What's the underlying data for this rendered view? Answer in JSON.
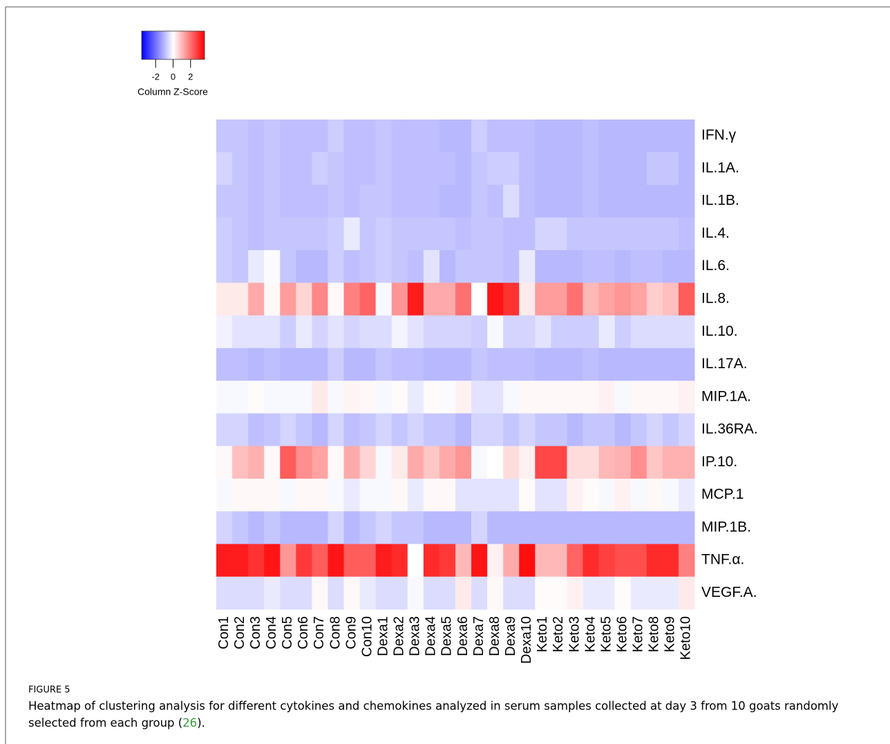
{
  "chart_data": {
    "type": "heatmap",
    "x": [
      "Con1",
      "Con2",
      "Con3",
      "Con4",
      "Con5",
      "Con6",
      "Con7",
      "Con8",
      "Con9",
      "Con10",
      "Dexa1",
      "Dexa2",
      "Dexa3",
      "Dexa4",
      "Dexa5",
      "Dexa6",
      "Dexa7",
      "Dexa8",
      "Dexa9",
      "Dexa10",
      "Keto1",
      "Keto2",
      "Keto3",
      "Keto4",
      "Keto5",
      "Keto6",
      "Keto7",
      "Keto8",
      "Keto9",
      "Keto10"
    ],
    "y": [
      "IFN.γ",
      "IL.1A.",
      "IL.1B.",
      "IL.4.",
      "IL.6.",
      "IL.8.",
      "IL.10.",
      "IL.17A.",
      "MIP.1A.",
      "IL.36RA.",
      "IP.10.",
      "MCP.1",
      "MIP.1B.",
      "TNF.α.",
      "VEGF.A."
    ],
    "values": [
      [
        -0.8,
        -0.8,
        -0.9,
        -0.8,
        -0.9,
        -0.9,
        -0.9,
        -0.7,
        -0.9,
        -0.9,
        -0.8,
        -0.9,
        -0.9,
        -0.9,
        -1,
        -1,
        -0.7,
        -0.9,
        -0.9,
        -0.9,
        -1,
        -1,
        -1,
        -0.9,
        -1,
        -1,
        -1,
        -1,
        -1,
        -1
      ],
      [
        -0.6,
        -0.8,
        -0.9,
        -0.8,
        -0.9,
        -0.9,
        -0.7,
        -0.8,
        -0.9,
        -0.9,
        -0.8,
        -0.9,
        -0.9,
        -0.9,
        -0.9,
        -1,
        -0.8,
        -0.7,
        -0.7,
        -0.9,
        -1,
        -1,
        -1,
        -0.9,
        -1,
        -1,
        -1,
        -0.8,
        -0.8,
        -1
      ],
      [
        -0.8,
        -0.8,
        -0.9,
        -0.8,
        -0.9,
        -0.9,
        -0.9,
        -0.8,
        -0.9,
        -0.8,
        -0.8,
        -0.9,
        -0.9,
        -0.9,
        -1,
        -1,
        -0.8,
        -0.9,
        -0.5,
        -0.9,
        -1,
        -1,
        -1,
        -0.9,
        -1,
        -1,
        -1,
        -1,
        -1,
        -1
      ],
      [
        -0.7,
        -0.8,
        -0.9,
        -0.8,
        -0.8,
        -0.8,
        -0.8,
        -0.7,
        -0.3,
        -0.8,
        -0.7,
        -0.8,
        -0.8,
        -0.8,
        -0.8,
        -0.9,
        -0.8,
        -0.8,
        -0.9,
        -0.9,
        -0.6,
        -0.6,
        -0.8,
        -0.8,
        -0.8,
        -0.8,
        -0.8,
        -0.8,
        -0.8,
        -0.9
      ],
      [
        -0.7,
        -0.8,
        -0.3,
        -0.05,
        -0.8,
        -1,
        -1,
        -0.7,
        -0.9,
        -0.8,
        -0.7,
        -0.8,
        -0.9,
        -0.4,
        -1,
        -0.8,
        -0.8,
        -0.8,
        -0.9,
        -0.3,
        -1,
        -1,
        -1,
        -0.9,
        -0.9,
        -1,
        -0.9,
        -0.9,
        -1,
        -1
      ],
      [
        0.3,
        0.3,
        1.2,
        0.1,
        1.4,
        0.6,
        1.7,
        0.1,
        1.8,
        2.2,
        -0.1,
        1.5,
        3.2,
        1.2,
        1.2,
        2,
        0,
        3.3,
        2.9,
        0.3,
        1.4,
        1.4,
        2,
        1,
        1.3,
        1.5,
        1.3,
        0.7,
        0.9,
        2.3
      ],
      [
        -0.2,
        -0.4,
        -0.4,
        -0.4,
        -0.7,
        -0.3,
        -0.6,
        -0.4,
        -0.6,
        -0.5,
        -0.5,
        -0.15,
        -0.4,
        -0.6,
        -0.6,
        -0.6,
        -0.7,
        -0.1,
        -0.6,
        -0.6,
        -0.4,
        -0.7,
        -0.7,
        -0.7,
        -0.3,
        -0.7,
        -0.5,
        -0.5,
        -0.5,
        -0.5
      ],
      [
        -0.9,
        -0.9,
        -1,
        -0.9,
        -1,
        -1,
        -1,
        -0.7,
        -1,
        -1,
        -0.8,
        -0.9,
        -0.9,
        -1,
        -1,
        -1,
        -0.8,
        -0.9,
        -0.9,
        -0.9,
        -1,
        -1,
        -1,
        -0.9,
        -1,
        -1,
        -1,
        -1,
        -1,
        -1
      ],
      [
        -0.1,
        -0.1,
        0.05,
        -0.1,
        -0.1,
        -0.1,
        0.3,
        -0.1,
        0.15,
        0.1,
        -0.1,
        0.05,
        -0.3,
        0.05,
        -0.05,
        0.2,
        -0.4,
        -0.4,
        -0.1,
        0.1,
        0.1,
        0.1,
        0.1,
        0.1,
        0.2,
        -0.1,
        0.1,
        0.1,
        0.1,
        0.2
      ],
      [
        -0.6,
        -0.6,
        -0.9,
        -0.8,
        -0.6,
        -0.8,
        -1,
        -0.6,
        -0.9,
        -0.8,
        -0.6,
        -0.8,
        -0.6,
        -0.8,
        -0.8,
        -1,
        -0.6,
        -0.6,
        -0.8,
        -0.6,
        -0.8,
        -0.8,
        -1,
        -0.8,
        -0.8,
        -1,
        -0.8,
        -0.6,
        -0.8,
        -0.6
      ],
      [
        0.1,
        0.9,
        1.1,
        0.1,
        2.3,
        1.6,
        1.3,
        0.1,
        1.2,
        0.6,
        -0.1,
        0.3,
        1.2,
        0.8,
        1.2,
        1.5,
        -0.1,
        0,
        0.5,
        0.2,
        2.6,
        2.6,
        0.5,
        0.5,
        1,
        1.1,
        1.6,
        0.8,
        1.1,
        1.1
      ],
      [
        -0.1,
        0.1,
        0.1,
        0.1,
        -0.1,
        0.1,
        0.1,
        -0.1,
        -0.3,
        -0.1,
        -0.1,
        0.1,
        -0.3,
        0.1,
        0.1,
        -0.4,
        -0.4,
        -0.4,
        -0.4,
        0.05,
        -0.4,
        -0.4,
        0.2,
        0.05,
        -0.1,
        0.2,
        -0.1,
        0.1,
        -0.1,
        -0.3
      ],
      [
        -0.6,
        -0.8,
        -1,
        -0.8,
        -1,
        -1,
        -1,
        -0.6,
        -1,
        -0.8,
        -0.6,
        -0.8,
        -0.8,
        -1,
        -1,
        -1,
        -0.6,
        -1,
        -1,
        -1,
        -1,
        -1,
        -1,
        -1,
        -1,
        -1,
        -1,
        -1,
        -1,
        -1
      ],
      [
        3.2,
        3.2,
        2.9,
        3.3,
        1.5,
        2.8,
        2.3,
        3.3,
        2.3,
        2.3,
        3.2,
        3,
        0,
        3,
        2.8,
        1,
        3.3,
        0.2,
        1.2,
        3.4,
        1,
        1,
        2.2,
        3,
        2.7,
        2.5,
        2.5,
        3,
        3,
        1.8
      ],
      [
        -0.5,
        -0.5,
        -0.5,
        -0.3,
        -0.5,
        -0.5,
        0.1,
        -0.5,
        0.1,
        -0.3,
        -0.5,
        -0.5,
        -0.1,
        -0.5,
        -0.5,
        0.3,
        -0.5,
        0.1,
        -0.5,
        -0.5,
        0.05,
        0.05,
        0.2,
        -0.3,
        -0.3,
        0.05,
        -0.3,
        -0.3,
        -0.3,
        0.3
      ]
    ],
    "zlim": [
      -3.6,
      3.6
    ],
    "colors": [
      "#0000ff",
      "#ffffff",
      "#ff0000"
    ],
    "legend": {
      "title": "Column Z-Score",
      "ticks": [
        -2,
        0,
        2
      ]
    },
    "caption": {
      "label": "FIGURE 5",
      "text_line1": "Heatmap of clustering analysis for different cytokines and chemokines analyzed in serum samples collected at day 3 from 10 goats randomly",
      "text_line2": "selected from each group (",
      "ref": "26",
      "end": ")."
    }
  }
}
